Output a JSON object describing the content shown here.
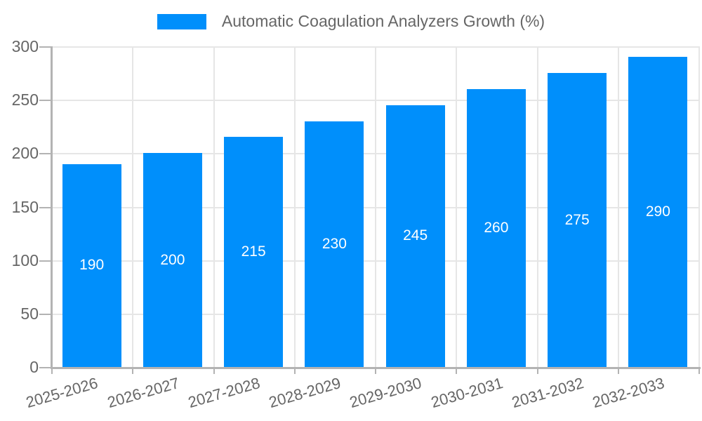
{
  "legend": {
    "label": "Automatic Coagulation Analyzers Growth (%)"
  },
  "colors": {
    "bar": "#008FFB",
    "data_label_text": "#ffffff",
    "axis_text": "#666666",
    "grid_line": "#e6e6e6",
    "axis_line": "#b3b3b3",
    "background": "#ffffff"
  },
  "chart_data": {
    "type": "bar",
    "title": "Automatic Coagulation Analyzers Growth (%)",
    "series_name": "Automatic Coagulation Analyzers Growth (%)",
    "categories": [
      "2025-2026",
      "2026-2027",
      "2027-2028",
      "2028-2029",
      "2029-2030",
      "2030-2031",
      "2031-2032",
      "2032-2033"
    ],
    "values": [
      190,
      200,
      215,
      230,
      245,
      260,
      275,
      290
    ],
    "xlabel": "",
    "ylabel": "",
    "ylim": [
      0,
      300
    ],
    "yticks": [
      0,
      50,
      100,
      150,
      200,
      250,
      300
    ],
    "grid": true,
    "legend_position": "top",
    "data_labels_position": "inside-middle",
    "x_label_rotation_deg": -16
  }
}
